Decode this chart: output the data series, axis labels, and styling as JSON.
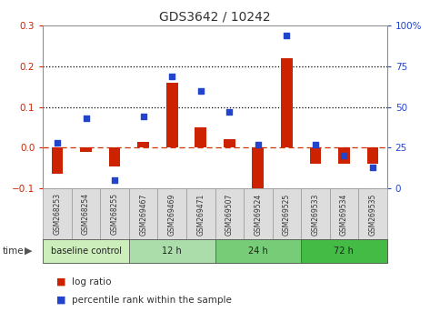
{
  "title": "GDS3642 / 10242",
  "samples": [
    "GSM268253",
    "GSM268254",
    "GSM268255",
    "GSM269467",
    "GSM269469",
    "GSM269471",
    "GSM269507",
    "GSM269524",
    "GSM269525",
    "GSM269533",
    "GSM269534",
    "GSM269535"
  ],
  "log_ratio": [
    -0.065,
    -0.01,
    -0.045,
    0.015,
    0.16,
    0.05,
    0.02,
    -0.105,
    0.22,
    -0.04,
    -0.04,
    -0.04
  ],
  "percentile_rank": [
    28,
    43,
    5,
    44,
    69,
    60,
    47,
    27,
    94,
    27,
    20,
    13
  ],
  "ylim_left": [
    -0.1,
    0.3
  ],
  "ylim_right": [
    0,
    100
  ],
  "groups": [
    {
      "label": "baseline control",
      "start": 0,
      "end": 3
    },
    {
      "label": "12 h",
      "start": 3,
      "end": 6
    },
    {
      "label": "24 h",
      "start": 6,
      "end": 9
    },
    {
      "label": "72 h",
      "start": 9,
      "end": 12
    }
  ],
  "group_colors": [
    "#cceebb",
    "#aaddaa",
    "#77cc77",
    "#44bb44"
  ],
  "bar_color": "#cc2200",
  "dot_color": "#2244cc",
  "plot_bg": "#ffffff",
  "zero_line_color": "#cc3300",
  "label_bg": "#dddddd",
  "label_edge": "#999999",
  "title_color": "#333333",
  "tick_label_color": "#444444",
  "left_yticks": [
    -0.1,
    0.0,
    0.1,
    0.2,
    0.3
  ],
  "right_yticks": [
    0,
    25,
    50,
    75,
    100
  ],
  "dotted_lines": [
    0.1,
    0.2
  ]
}
